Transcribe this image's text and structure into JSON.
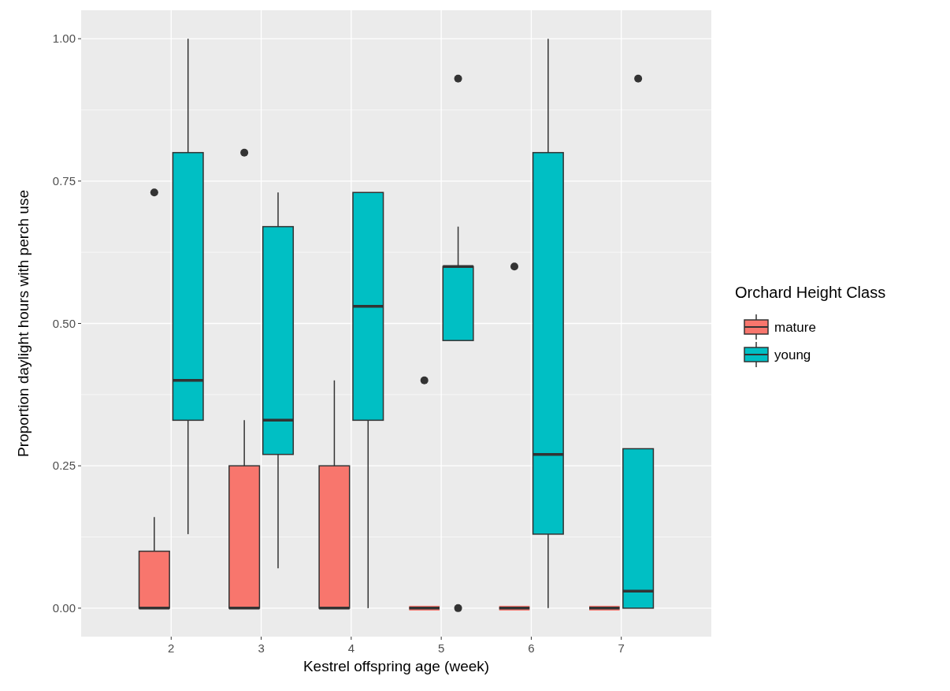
{
  "chart_data": {
    "type": "box",
    "xlabel": "Kestrel offspring age (week)",
    "ylabel": "Proportion daylight hours with perch use",
    "legend_title": "Orchard Height Class",
    "categories": [
      "2",
      "3",
      "4",
      "5",
      "6",
      "7"
    ],
    "ylim": [
      -0.05,
      1.05
    ],
    "yticks": [
      {
        "value": 0,
        "label": "0.00"
      },
      {
        "value": 0.25,
        "label": "0.25"
      },
      {
        "value": 0.5,
        "label": "0.50"
      },
      {
        "value": 0.75,
        "label": "0.75"
      },
      {
        "value": 1,
        "label": "1.00"
      }
    ],
    "grid": true,
    "legend": "right",
    "series": [
      {
        "name": "mature",
        "color": "#f8766d",
        "boxes": [
          {
            "low": 0,
            "q1": 0,
            "median": 0,
            "q3": 0.1,
            "high": 0.16,
            "outliers": [
              0.73
            ]
          },
          {
            "low": 0,
            "q1": 0,
            "median": 0,
            "q3": 0.25,
            "high": 0.33,
            "outliers": [
              0.8
            ]
          },
          {
            "low": 0,
            "q1": 0,
            "median": 0,
            "q3": 0.25,
            "high": 0.4
          },
          {
            "low": 0,
            "q1": 0,
            "median": 0,
            "q3": 0,
            "high": 0,
            "outliers": [
              0.4
            ]
          },
          {
            "low": 0,
            "q1": 0,
            "median": 0,
            "q3": 0,
            "high": 0,
            "outliers": [
              0.6
            ]
          },
          {
            "low": 0,
            "q1": 0,
            "median": 0,
            "q3": 0,
            "high": 0
          }
        ]
      },
      {
        "name": "young",
        "color": "#00bfc4",
        "boxes": [
          {
            "low": 0.13,
            "q1": 0.33,
            "median": 0.4,
            "q3": 0.8,
            "high": 1
          },
          {
            "low": 0.07,
            "q1": 0.27,
            "median": 0.33,
            "q3": 0.67,
            "high": 0.73
          },
          {
            "low": 0,
            "q1": 0.33,
            "median": 0.53,
            "q3": 0.73,
            "high": 0.73
          },
          {
            "low": 0.47,
            "q1": 0.47,
            "median": 0.6,
            "q3": 0.6,
            "high": 0.67,
            "outliers": [
              0.93,
              0
            ]
          },
          {
            "low": 0,
            "q1": 0.13,
            "median": 0.27,
            "q3": 0.8,
            "high": 1
          },
          {
            "low": 0,
            "q1": 0,
            "median": 0.03,
            "q3": 0.28,
            "high": 0.28,
            "outliers": [
              0.93
            ]
          }
        ]
      }
    ]
  }
}
